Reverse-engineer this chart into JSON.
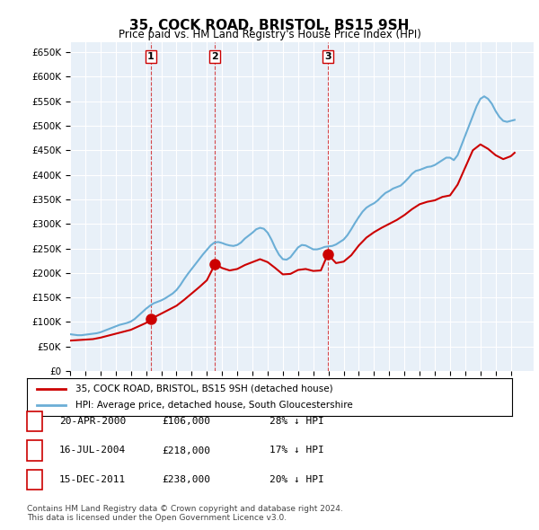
{
  "title": "35, COCK ROAD, BRISTOL, BS15 9SH",
  "subtitle": "Price paid vs. HM Land Registry's House Price Index (HPI)",
  "ylabel_ticks": [
    "£0",
    "£50K",
    "£100K",
    "£150K",
    "£200K",
    "£250K",
    "£300K",
    "£350K",
    "£400K",
    "£450K",
    "£500K",
    "£550K",
    "£600K",
    "£650K"
  ],
  "ytick_values": [
    0,
    50000,
    100000,
    150000,
    200000,
    250000,
    300000,
    350000,
    400000,
    450000,
    500000,
    550000,
    600000,
    650000
  ],
  "ylim": [
    0,
    670000
  ],
  "xlim_start": 1995.0,
  "xlim_end": 2025.5,
  "hpi_color": "#6baed6",
  "price_color": "#cc0000",
  "sale_marker_color": "#cc0000",
  "background_color": "#e8f0f8",
  "grid_color": "#ffffff",
  "sale_points": [
    {
      "label": "1",
      "year": 2000.31,
      "price": 106000,
      "hpi_price": 147000
    },
    {
      "label": "2",
      "year": 2004.54,
      "price": 218000,
      "hpi_price": 262000
    },
    {
      "label": "3",
      "year": 2011.96,
      "price": 238000,
      "hpi_price": 297000
    }
  ],
  "legend_entries": [
    "35, COCK ROAD, BRISTOL, BS15 9SH (detached house)",
    "HPI: Average price, detached house, South Gloucestershire"
  ],
  "table_rows": [
    {
      "num": "1",
      "date": "20-APR-2000",
      "price": "£106,000",
      "pct": "28% ↓ HPI"
    },
    {
      "num": "2",
      "date": "16-JUL-2004",
      "price": "£218,000",
      "pct": "17% ↓ HPI"
    },
    {
      "num": "3",
      "date": "15-DEC-2011",
      "price": "£238,000",
      "pct": "20% ↓ HPI"
    }
  ],
  "footnote": "Contains HM Land Registry data © Crown copyright and database right 2024.\nThis data is licensed under the Open Government Licence v3.0.",
  "hpi_data_x": [
    1995.0,
    1995.25,
    1995.5,
    1995.75,
    1996.0,
    1996.25,
    1996.5,
    1996.75,
    1997.0,
    1997.25,
    1997.5,
    1997.75,
    1998.0,
    1998.25,
    1998.5,
    1998.75,
    1999.0,
    1999.25,
    1999.5,
    1999.75,
    2000.0,
    2000.25,
    2000.5,
    2000.75,
    2001.0,
    2001.25,
    2001.5,
    2001.75,
    2002.0,
    2002.25,
    2002.5,
    2002.75,
    2003.0,
    2003.25,
    2003.5,
    2003.75,
    2004.0,
    2004.25,
    2004.5,
    2004.75,
    2005.0,
    2005.25,
    2005.5,
    2005.75,
    2006.0,
    2006.25,
    2006.5,
    2006.75,
    2007.0,
    2007.25,
    2007.5,
    2007.75,
    2008.0,
    2008.25,
    2008.5,
    2008.75,
    2009.0,
    2009.25,
    2009.5,
    2009.75,
    2010.0,
    2010.25,
    2010.5,
    2010.75,
    2011.0,
    2011.25,
    2011.5,
    2011.75,
    2012.0,
    2012.25,
    2012.5,
    2012.75,
    2013.0,
    2013.25,
    2013.5,
    2013.75,
    2014.0,
    2014.25,
    2014.5,
    2014.75,
    2015.0,
    2015.25,
    2015.5,
    2015.75,
    2016.0,
    2016.25,
    2016.5,
    2016.75,
    2017.0,
    2017.25,
    2017.5,
    2017.75,
    2018.0,
    2018.25,
    2018.5,
    2018.75,
    2019.0,
    2019.25,
    2019.5,
    2019.75,
    2020.0,
    2020.25,
    2020.5,
    2020.75,
    2021.0,
    2021.25,
    2021.5,
    2021.75,
    2022.0,
    2022.25,
    2022.5,
    2022.75,
    2023.0,
    2023.25,
    2023.5,
    2023.75,
    2024.0,
    2024.25
  ],
  "hpi_data_y": [
    75000,
    74000,
    73000,
    73000,
    74000,
    75000,
    76000,
    77000,
    79000,
    82000,
    85000,
    88000,
    91000,
    94000,
    96000,
    98000,
    101000,
    106000,
    113000,
    120000,
    127000,
    133000,
    138000,
    141000,
    144000,
    148000,
    153000,
    158000,
    165000,
    175000,
    187000,
    198000,
    208000,
    218000,
    228000,
    238000,
    247000,
    256000,
    262000,
    263000,
    261000,
    258000,
    256000,
    255000,
    257000,
    262000,
    270000,
    276000,
    282000,
    289000,
    292000,
    290000,
    282000,
    268000,
    251000,
    237000,
    228000,
    227000,
    232000,
    242000,
    252000,
    257000,
    256000,
    252000,
    248000,
    248000,
    250000,
    253000,
    254000,
    255000,
    258000,
    263000,
    268000,
    277000,
    289000,
    302000,
    314000,
    325000,
    333000,
    338000,
    342000,
    348000,
    356000,
    363000,
    367000,
    372000,
    375000,
    378000,
    385000,
    393000,
    402000,
    408000,
    410000,
    413000,
    416000,
    417000,
    420000,
    425000,
    430000,
    435000,
    435000,
    430000,
    440000,
    460000,
    480000,
    500000,
    520000,
    540000,
    555000,
    560000,
    555000,
    545000,
    530000,
    518000,
    510000,
    508000,
    510000,
    512000
  ],
  "price_data_x": [
    1995.0,
    1995.5,
    1996.0,
    1996.5,
    1997.0,
    1997.5,
    1998.0,
    1998.5,
    1999.0,
    1999.5,
    2000.0,
    2000.31,
    2000.75,
    2001.0,
    2001.5,
    2002.0,
    2002.5,
    2003.0,
    2003.5,
    2004.0,
    2004.54,
    2005.0,
    2005.5,
    2006.0,
    2006.5,
    2007.0,
    2007.5,
    2008.0,
    2008.5,
    2009.0,
    2009.5,
    2010.0,
    2010.5,
    2011.0,
    2011.5,
    2011.96,
    2012.5,
    2013.0,
    2013.5,
    2014.0,
    2014.5,
    2015.0,
    2015.5,
    2016.0,
    2016.5,
    2017.0,
    2017.5,
    2018.0,
    2018.5,
    2019.0,
    2019.5,
    2020.0,
    2020.5,
    2021.0,
    2021.5,
    2022.0,
    2022.5,
    2023.0,
    2023.5,
    2024.0,
    2024.25
  ],
  "price_data_y": [
    62000,
    63000,
    64000,
    65000,
    68000,
    72000,
    76000,
    80000,
    84000,
    91000,
    98000,
    106000,
    113000,
    117000,
    125000,
    133000,
    145000,
    158000,
    171000,
    185000,
    218000,
    210000,
    205000,
    208000,
    216000,
    222000,
    228000,
    222000,
    210000,
    197000,
    198000,
    206000,
    208000,
    204000,
    205000,
    238000,
    220000,
    223000,
    236000,
    256000,
    272000,
    283000,
    292000,
    300000,
    308000,
    318000,
    330000,
    340000,
    345000,
    348000,
    355000,
    358000,
    380000,
    415000,
    450000,
    462000,
    453000,
    440000,
    432000,
    438000,
    445000
  ]
}
